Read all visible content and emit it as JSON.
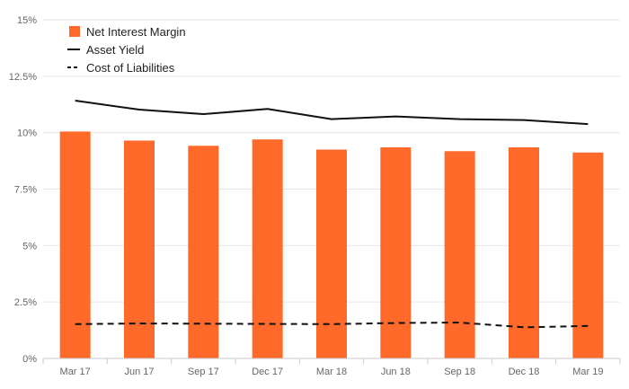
{
  "chart_data": {
    "type": "bar",
    "categories": [
      "Mar 17",
      "Jun 17",
      "Sep 17",
      "Dec 17",
      "Mar 18",
      "Jun 18",
      "Sep 18",
      "Dec 18",
      "Mar 19"
    ],
    "series": [
      {
        "name": "Net Interest Margin",
        "type": "bar",
        "color": "#ff6a2b",
        "values": [
          10.05,
          9.65,
          9.42,
          9.7,
          9.25,
          9.35,
          9.18,
          9.35,
          9.12
        ]
      },
      {
        "name": "Asset Yield",
        "type": "line",
        "style": "solid",
        "color": "#111111",
        "values": [
          11.42,
          11.02,
          10.82,
          11.05,
          10.6,
          10.72,
          10.6,
          10.56,
          10.38
        ]
      },
      {
        "name": "Cost of Liabilities",
        "type": "line",
        "style": "dashed",
        "color": "#111111",
        "values": [
          1.52,
          1.55,
          1.54,
          1.53,
          1.52,
          1.57,
          1.59,
          1.38,
          1.44
        ]
      }
    ],
    "y_ticks": [
      "0%",
      "2.5%",
      "5%",
      "7.5%",
      "10%",
      "12.5%",
      "15%"
    ],
    "ylim": [
      0,
      15
    ],
    "grid": "horizontal",
    "legend_position": "top-left"
  }
}
